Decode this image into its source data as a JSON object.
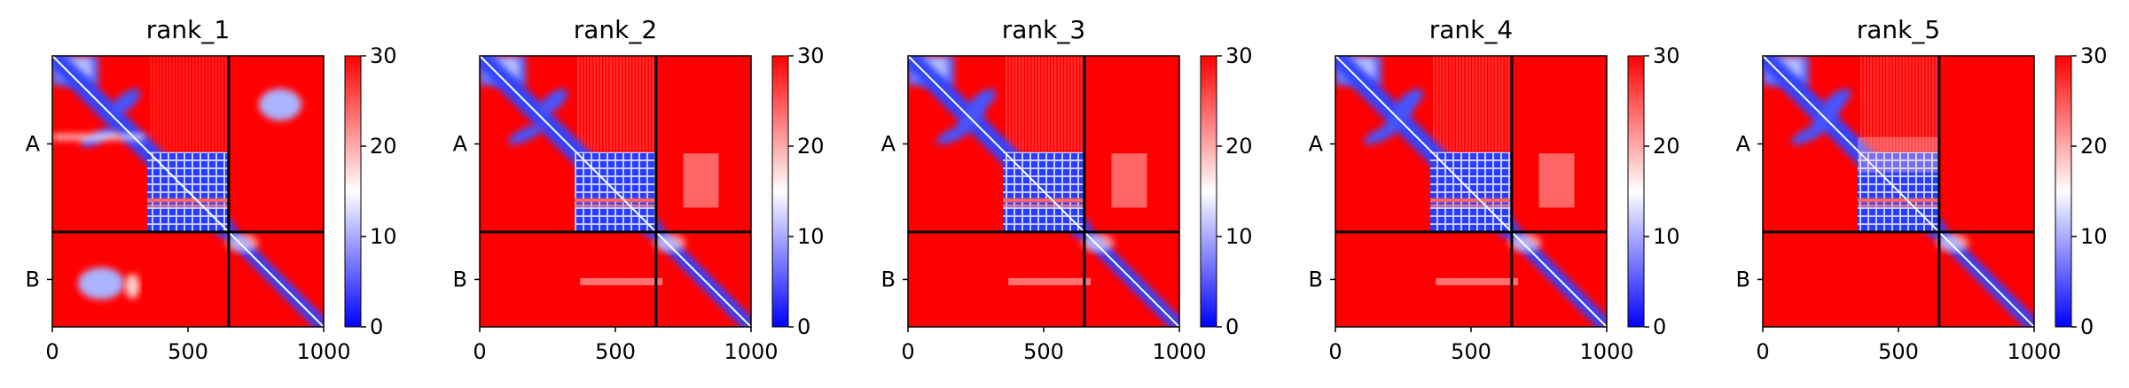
{
  "chart_data": {
    "type": "heatmap",
    "colormap": [
      "#0000ff",
      "#ffffff",
      "#ff0000"
    ],
    "colorbar": {
      "min": 0,
      "max": 30,
      "ticks": [
        "0",
        "10",
        "20",
        "30"
      ]
    },
    "x_ticks": [
      "0",
      "500",
      "1000"
    ],
    "xlim": [
      0,
      1000
    ],
    "chain_boundary": 650,
    "chain_labels": [
      "A",
      "B"
    ],
    "panels": [
      {
        "title": "rank_1",
        "variant": 1
      },
      {
        "title": "rank_2",
        "variant": 2
      },
      {
        "title": "rank_3",
        "variant": 3
      },
      {
        "title": "rank_4",
        "variant": 4
      },
      {
        "title": "rank_5",
        "variant": 5
      }
    ]
  }
}
